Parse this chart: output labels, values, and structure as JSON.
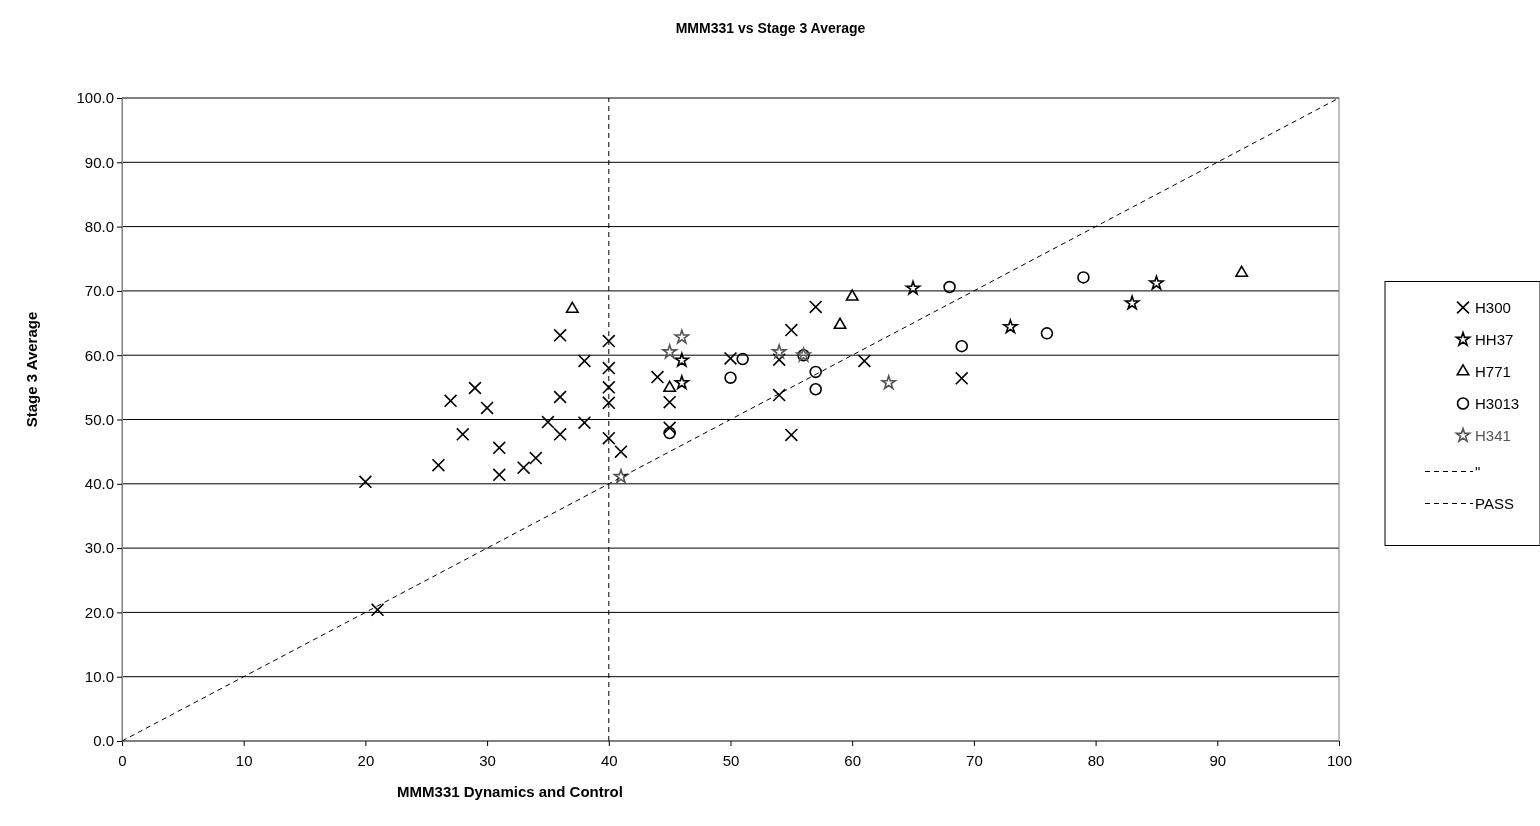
{
  "chart_data": {
    "type": "scatter",
    "title": "MMM331 vs Stage 3 Average",
    "xlabel": "MMM331 Dynamics and Control",
    "ylabel": "Stage 3 Average",
    "xlim": [
      0,
      100
    ],
    "xticks": [
      0,
      10,
      20,
      30,
      40,
      50,
      60,
      70,
      80,
      90,
      100
    ],
    "ylim": [
      0,
      100
    ],
    "yticks": [
      {
        "value": 0,
        "label": "0.0"
      },
      {
        "value": 10,
        "label": "10.0"
      },
      {
        "value": 20,
        "label": "20.0"
      },
      {
        "value": 30,
        "label": "30.0"
      },
      {
        "value": 40,
        "label": "40.0"
      },
      {
        "value": 50,
        "label": "50.0"
      },
      {
        "value": 60,
        "label": "60.0"
      },
      {
        "value": 70,
        "label": "70.0"
      },
      {
        "value": 80,
        "label": "80.0"
      },
      {
        "value": 90,
        "label": "90.0"
      },
      {
        "value": 100,
        "label": "100.0"
      }
    ],
    "grid": "y",
    "legend": "right",
    "series": [
      {
        "name": "H300",
        "color": "#000000",
        "marker": "cross",
        "x": [
          20,
          21,
          26,
          27,
          28,
          29,
          30,
          31,
          31,
          33,
          34,
          35,
          36,
          36,
          36,
          38,
          38,
          40,
          40,
          40,
          40,
          40,
          41,
          44,
          45,
          45,
          50,
          54,
          54,
          55,
          55,
          57,
          61,
          69
        ],
        "values": [
          40.3,
          20.4,
          42.9,
          52.9,
          47.7,
          54.9,
          51.8,
          45.6,
          41.4,
          42.5,
          44,
          49.6,
          63.1,
          53.5,
          47.7,
          59.1,
          49.5,
          62.2,
          58,
          55,
          52.6,
          47.1,
          45,
          56.6,
          52.7,
          48.7,
          59.5,
          59.3,
          53.8,
          63.9,
          47.6,
          67.5,
          59.1,
          56.4
        ]
      },
      {
        "name": "HH37",
        "color": "#000000",
        "marker": "star",
        "x": [
          46,
          46,
          65,
          73,
          83,
          85
        ],
        "values": [
          59.2,
          55.7,
          70.4,
          64.4,
          68.1,
          71.2
        ]
      },
      {
        "name": "H771",
        "color": "#000000",
        "marker": "triangle",
        "x": [
          37,
          45,
          59,
          60,
          92
        ],
        "values": [
          67.2,
          54.9,
          64.7,
          69.1,
          72.8
        ]
      },
      {
        "name": "H3013",
        "color": "#000000",
        "marker": "circle",
        "x": [
          45,
          50,
          51,
          56,
          57,
          57,
          68,
          69,
          76,
          79
        ],
        "values": [
          47.9,
          56.5,
          59.4,
          60,
          57.4,
          54.7,
          70.6,
          61.4,
          63.4,
          72.1
        ]
      },
      {
        "name": "H341",
        "color": "#555555",
        "marker": "star",
        "x": [
          41,
          45,
          46,
          54,
          56,
          63
        ],
        "values": [
          41.1,
          60.5,
          62.8,
          60.5,
          60,
          55.7
        ]
      },
      {
        "name": "\"",
        "type": "line",
        "color": "#000000",
        "marker": "none",
        "line_style": "dashed",
        "x": [
          0,
          100
        ],
        "values": [
          0,
          100
        ]
      },
      {
        "name": "PASS",
        "type": "line",
        "color": "#000000",
        "marker": "none",
        "line_style": "dashed",
        "x": [
          40,
          40
        ],
        "values": [
          0,
          100
        ]
      }
    ]
  }
}
